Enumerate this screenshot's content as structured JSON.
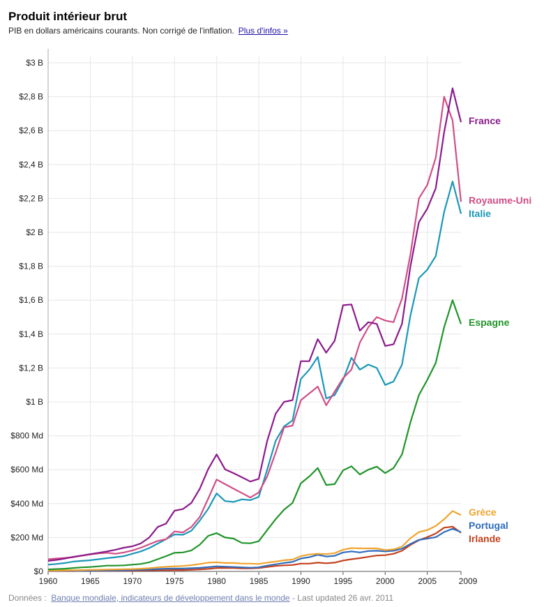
{
  "header": {
    "title": "Produit intérieur brut",
    "subtitle": "PIB en dollars américains courants. Non corrigé de l'inflation.",
    "more_link": "Plus d'infos »"
  },
  "footer": {
    "label": "Données :",
    "source_link": "Banque mondiale, indicateurs de développement dans le monde",
    "updated": "- Last updated 26 avr. 2011"
  },
  "chart_data": {
    "type": "line",
    "title": "Produit intérieur brut",
    "xlabel": "",
    "ylabel": "",
    "xlim": [
      1960,
      2009
    ],
    "ylim": [
      0,
      3000
    ],
    "unit": "milliards USD",
    "x_ticks": [
      1960,
      1965,
      1970,
      1975,
      1980,
      1985,
      1990,
      1995,
      2000,
      2005,
      2009
    ],
    "y_ticks": [
      0,
      200,
      400,
      600,
      800,
      1000,
      1200,
      1400,
      1600,
      1800,
      2000,
      2200,
      2400,
      2600,
      2800,
      3000
    ],
    "y_tick_labels": [
      "$0",
      "$200 Md",
      "$400 Md",
      "$600 Md",
      "$800 Md",
      "$1 B",
      "$1,2 B",
      "$1,4 B",
      "$1,6 B",
      "$1,8 B",
      "$2 B",
      "$2,2 B",
      "$2,4 B",
      "$2,6 B",
      "$2,8 B",
      "$3 B"
    ],
    "grid": true,
    "legend": "right",
    "x": [
      1960,
      1961,
      1962,
      1963,
      1964,
      1965,
      1966,
      1967,
      1968,
      1969,
      1970,
      1971,
      1972,
      1973,
      1974,
      1975,
      1976,
      1977,
      1978,
      1979,
      1980,
      1981,
      1982,
      1983,
      1984,
      1985,
      1986,
      1987,
      1988,
      1989,
      1990,
      1991,
      1992,
      1993,
      1994,
      1995,
      1996,
      1997,
      1998,
      1999,
      2000,
      2001,
      2002,
      2003,
      2004,
      2005,
      2006,
      2007,
      2008,
      2009
    ],
    "series": [
      {
        "name": "France",
        "color": "#8b1a8b",
        "label_value": 2650,
        "values": [
          62,
          68,
          76,
          86,
          94,
          102,
          110,
          118,
          128,
          140,
          148,
          165,
          200,
          262,
          282,
          358,
          368,
          404,
          488,
          604,
          690,
          602,
          580,
          555,
          530,
          546,
          770,
          930,
          1000,
          1010,
          1240,
          1240,
          1370,
          1290,
          1360,
          1570,
          1575,
          1420,
          1470,
          1460,
          1330,
          1340,
          1460,
          1800,
          2060,
          2140,
          2260,
          2590,
          2850,
          2650
        ]
      },
      {
        "name": "Royaume-Uni",
        "color": "#d04e86",
        "label_value": 2180,
        "values": [
          72,
          76,
          80,
          84,
          92,
          100,
          106,
          110,
          104,
          112,
          124,
          140,
          160,
          180,
          190,
          236,
          230,
          262,
          322,
          430,
          542,
          515,
          488,
          462,
          436,
          466,
          560,
          700,
          850,
          860,
          1010,
          1050,
          1090,
          980,
          1060,
          1140,
          1190,
          1350,
          1440,
          1500,
          1480,
          1470,
          1610,
          1870,
          2200,
          2280,
          2440,
          2800,
          2660,
          2180
        ]
      },
      {
        "name": "Italie",
        "color": "#1a97b8",
        "label_value": 2110,
        "values": [
          40,
          44,
          50,
          58,
          62,
          66,
          72,
          78,
          84,
          90,
          104,
          118,
          138,
          164,
          190,
          218,
          216,
          240,
          300,
          370,
          460,
          415,
          410,
          425,
          420,
          440,
          600,
          770,
          855,
          890,
          1135,
          1190,
          1265,
          1020,
          1040,
          1130,
          1260,
          1190,
          1220,
          1200,
          1100,
          1120,
          1220,
          1510,
          1730,
          1780,
          1860,
          2120,
          2300,
          2110
        ]
      },
      {
        "name": "Espagne",
        "color": "#1f9428",
        "label_value": 1460,
        "values": [
          12,
          14,
          16,
          20,
          24,
          26,
          30,
          34,
          34,
          36,
          40,
          44,
          54,
          72,
          90,
          110,
          112,
          124,
          158,
          210,
          226,
          200,
          194,
          168,
          166,
          178,
          244,
          308,
          364,
          404,
          520,
          560,
          610,
          510,
          515,
          596,
          620,
          572,
          600,
          618,
          580,
          610,
          690,
          880,
          1040,
          1130,
          1230,
          1440,
          1600,
          1460
        ]
      },
      {
        "name": "Grèce",
        "color": "#f1a32c",
        "label_value": 330,
        "values": [
          5,
          5,
          6,
          7,
          8,
          9,
          10,
          11,
          12,
          13,
          14,
          16,
          19,
          24,
          27,
          30,
          32,
          37,
          44,
          52,
          54,
          50,
          50,
          46,
          46,
          44,
          52,
          58,
          66,
          70,
          90,
          100,
          104,
          102,
          108,
          128,
          138,
          136,
          136,
          136,
          126,
          130,
          146,
          196,
          232,
          244,
          268,
          308,
          356,
          332
        ]
      },
      {
        "name": "Portugal",
        "color": "#2e6bbd",
        "label_value": 232,
        "values": [
          3,
          3,
          4,
          4,
          4,
          4,
          5,
          5,
          6,
          6,
          8,
          9,
          11,
          14,
          16,
          17,
          17,
          19,
          21,
          25,
          30,
          28,
          26,
          24,
          22,
          24,
          34,
          42,
          50,
          56,
          76,
          84,
          98,
          88,
          92,
          112,
          118,
          112,
          120,
          122,
          118,
          122,
          134,
          162,
          186,
          194,
          202,
          232,
          252,
          232
        ]
      },
      {
        "name": "Irlande",
        "color": "#c4401c",
        "label_value": 228,
        "values": [
          2,
          2,
          2,
          2,
          3,
          3,
          3,
          3,
          4,
          4,
          4,
          5,
          6,
          7,
          7,
          8,
          8,
          10,
          12,
          15,
          20,
          20,
          20,
          18,
          18,
          20,
          26,
          32,
          36,
          38,
          46,
          46,
          52,
          48,
          52,
          64,
          72,
          78,
          86,
          94,
          96,
          104,
          122,
          156,
          184,
          202,
          224,
          258,
          264,
          228
        ]
      }
    ]
  }
}
